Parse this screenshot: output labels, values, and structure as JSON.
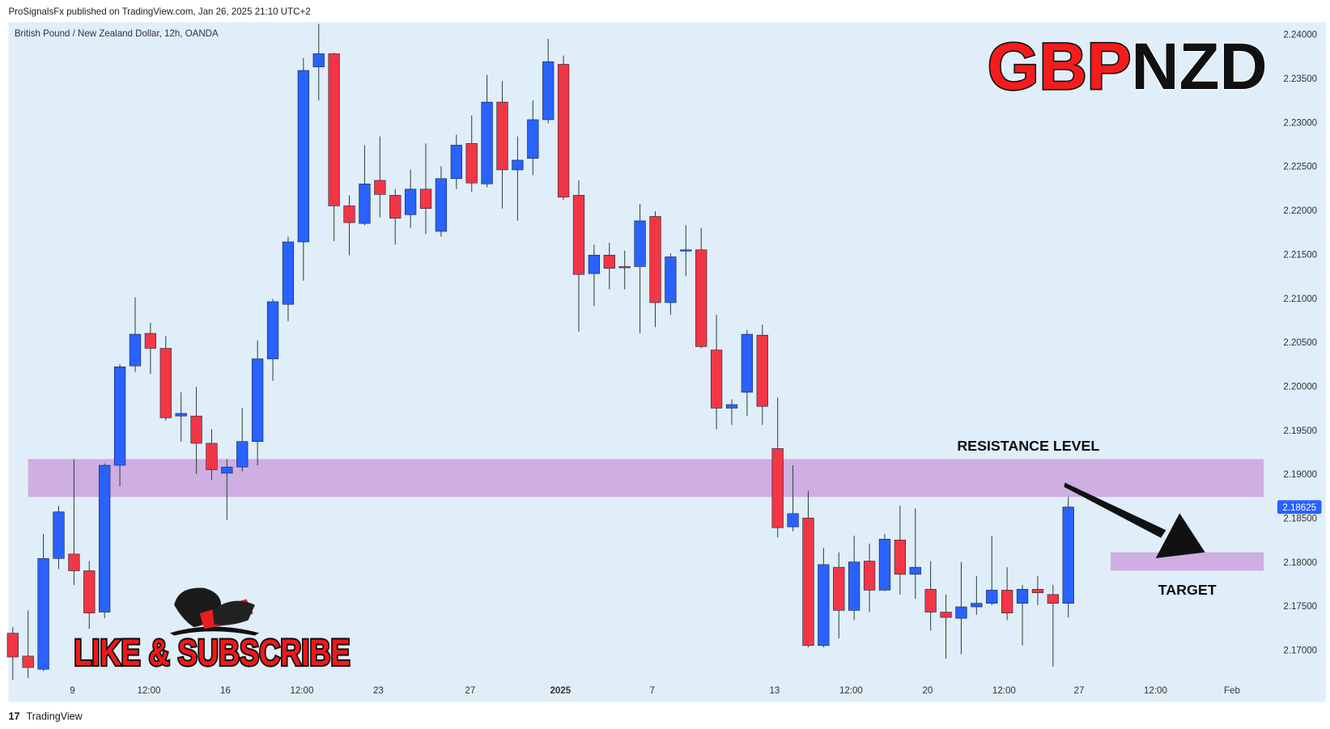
{
  "header": "ProSignalsFx published on TradingView.com, Jan 26, 2025 21:10 UTC+2",
  "footer": "TradingView",
  "logo_text": {
    "left": "GBP",
    "right": "NZD"
  },
  "promo": "LIKE & SUBSCRIBE",
  "chart_data": {
    "type": "candlestick",
    "title": "British Pound / New Zealand Dollar, 12h, OANDA",
    "up_color": "#2962ff",
    "down_color": "#f23645",
    "wick_color": "#2f4a3a",
    "open": [
      2.1719,
      2.1693,
      2.1678,
      2.1804,
      2.1809,
      2.179,
      2.1743,
      2.191,
      2.2023,
      2.206,
      2.2043,
      2.1966,
      2.1966,
      2.1935,
      2.1901,
      2.1908,
      2.1937,
      2.2031,
      2.2093,
      2.2164,
      2.2363,
      2.2378,
      2.2205,
      2.2185,
      2.2234,
      2.2217,
      2.2195,
      2.2224,
      2.2176,
      2.2236,
      2.2276,
      2.223,
      2.2323,
      2.2246,
      2.2259,
      2.2303,
      2.2366,
      2.2217,
      2.2128,
      2.2149,
      2.2136,
      2.2136,
      2.2193,
      2.2095,
      2.2154,
      2.2155,
      2.2041,
      2.1975,
      2.1993,
      2.2058,
      2.1929,
      2.184,
      2.185,
      2.1705,
      2.1794,
      2.1745,
      2.1801,
      2.1768,
      2.1825,
      2.1786,
      2.1769,
      2.1743,
      2.1736,
      2.1749,
      2.1753,
      2.1768,
      2.1753,
      2.1769,
      2.1763,
      2.1753
    ],
    "high": [
      2.1726,
      2.1745,
      2.1832,
      2.1864,
      2.1917,
      2.1801,
      2.1912,
      2.2025,
      2.2101,
      2.2072,
      2.2057,
      2.1993,
      2.1999,
      2.1951,
      2.1917,
      2.1975,
      2.2052,
      2.2099,
      2.217,
      2.2373,
      2.2412,
      2.2379,
      2.2217,
      2.2274,
      2.2284,
      2.2224,
      2.2246,
      2.2276,
      2.225,
      2.2286,
      2.2308,
      2.2354,
      2.2347,
      2.2284,
      2.2325,
      2.2395,
      2.2376,
      2.2234,
      2.2161,
      2.2163,
      2.2154,
      2.2207,
      2.2199,
      2.2151,
      2.2183,
      2.218,
      2.2081,
      2.1985,
      2.2064,
      2.207,
      2.1987,
      2.191,
      2.1881,
      2.1816,
      2.1811,
      2.183,
      2.1821,
      2.1832,
      2.1864,
      2.1861,
      2.1801,
      2.1763,
      2.18,
      2.1784,
      2.183,
      2.1794,
      2.1774,
      2.1784,
      2.1774,
      2.1874
    ],
    "low": [
      2.1666,
      2.1668,
      2.1676,
      2.1792,
      2.1774,
      2.1724,
      2.1736,
      2.1886,
      2.2016,
      2.2014,
      2.1961,
      2.1937,
      2.19,
      2.1893,
      2.1848,
      2.1903,
      2.191,
      2.2006,
      2.2074,
      2.212,
      2.2325,
      2.2165,
      2.2149,
      2.2183,
      2.2192,
      2.2161,
      2.218,
      2.2173,
      2.217,
      2.2224,
      2.2221,
      2.2226,
      2.2202,
      2.2188,
      2.224,
      2.2299,
      2.2212,
      2.2062,
      2.2091,
      2.211,
      2.211,
      2.206,
      2.2067,
      2.2081,
      2.2125,
      2.2043,
      2.1951,
      2.1956,
      2.1966,
      2.1956,
      2.1828,
      2.1835,
      2.1703,
      2.1703,
      2.1713,
      2.1734,
      2.1743,
      2.1767,
      2.1763,
      2.1758,
      2.1722,
      2.169,
      2.1695,
      2.174,
      2.1751,
      2.1734,
      2.1705,
      2.1751,
      2.1681,
      2.1737
    ],
    "close": [
      2.1692,
      2.168,
      2.1804,
      2.1857,
      2.179,
      2.1742,
      2.191,
      2.2022,
      2.2059,
      2.2043,
      2.1964,
      2.1969,
      2.1935,
      2.1905,
      2.1908,
      2.1937,
      2.2031,
      2.2096,
      2.2164,
      2.2359,
      2.2378,
      2.2205,
      2.2186,
      2.223,
      2.2218,
      2.2191,
      2.2224,
      2.2202,
      2.2236,
      2.2274,
      2.2231,
      2.2323,
      2.2246,
      2.2257,
      2.2303,
      2.2369,
      2.2215,
      2.2127,
      2.2149,
      2.2134,
      2.2135,
      2.2188,
      2.2095,
      2.2147,
      2.2155,
      2.2045,
      2.1975,
      2.1979,
      2.2059,
      2.1977,
      2.1839,
      2.1855,
      2.1705,
      2.1797,
      2.1745,
      2.18,
      2.1768,
      2.1826,
      2.1786,
      2.1794,
      2.1743,
      2.1737,
      2.1749,
      2.1753,
      2.1768,
      2.1742,
      2.1769,
      2.1765,
      2.1753,
      2.18625
    ],
    "last_label": "2.18625",
    "xlim": [
      -0.28,
      81.94
    ],
    "xticks": [
      {
        "value": 3.9,
        "label": "9"
      },
      {
        "value": 8.9,
        "label": "12:00"
      },
      {
        "value": 13.9,
        "label": "16"
      },
      {
        "value": 18.9,
        "label": "12:00"
      },
      {
        "value": 23.9,
        "label": "23"
      },
      {
        "value": 29.9,
        "label": "27"
      },
      {
        "value": 35.8,
        "label": "2025"
      },
      {
        "value": 41.8,
        "label": "7"
      },
      {
        "value": 49.8,
        "label": "13"
      },
      {
        "value": 54.8,
        "label": "12:00"
      },
      {
        "value": 59.8,
        "label": "20"
      },
      {
        "value": 64.8,
        "label": "12:00"
      },
      {
        "value": 69.7,
        "label": "27"
      },
      {
        "value": 74.7,
        "label": "12:00"
      },
      {
        "value": 79.7,
        "label": "Feb"
      }
    ],
    "ylim": [
      2.1641,
      2.2414
    ],
    "yticks": [
      {
        "value": 2.17,
        "label": "2.17000"
      },
      {
        "value": 2.175,
        "label": "2.17500"
      },
      {
        "value": 2.18,
        "label": "2.18000"
      },
      {
        "value": 2.185,
        "label": "2.18500"
      },
      {
        "value": 2.19,
        "label": "2.19000"
      },
      {
        "value": 2.195,
        "label": "2.19500"
      },
      {
        "value": 2.2,
        "label": "2.20000"
      },
      {
        "value": 2.205,
        "label": "2.20500"
      },
      {
        "value": 2.21,
        "label": "2.21000"
      },
      {
        "value": 2.215,
        "label": "2.21500"
      },
      {
        "value": 2.22,
        "label": "2.22000"
      },
      {
        "value": 2.225,
        "label": "2.22500"
      },
      {
        "value": 2.23,
        "label": "2.23000"
      },
      {
        "value": 2.235,
        "label": "2.23500"
      },
      {
        "value": 2.24,
        "label": "2.24000"
      }
    ],
    "grid": false,
    "zones": [
      {
        "label": "RESISTANCE LEVEL",
        "from": 2.1874,
        "to": 2.1917,
        "color": "#cfaee2"
      },
      {
        "label": "TARGET",
        "from": 2.179,
        "to": 2.1811,
        "color": "#cfaee2"
      }
    ]
  }
}
